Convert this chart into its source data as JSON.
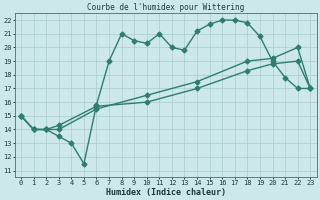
{
  "title": "Courbe de l'humidex pour Wittering",
  "xlabel": "Humidex (Indice chaleur)",
  "bg_color": "#cce8e8",
  "grid_color": "#aacccc",
  "line_color": "#2e7d6e",
  "xlim": [
    -0.5,
    23.5
  ],
  "ylim": [
    10.5,
    22.5
  ],
  "yticks": [
    11,
    12,
    13,
    14,
    15,
    16,
    17,
    18,
    19,
    20,
    21,
    22
  ],
  "xticks": [
    0,
    1,
    2,
    3,
    4,
    5,
    6,
    7,
    8,
    9,
    10,
    11,
    12,
    13,
    14,
    15,
    16,
    17,
    18,
    19,
    20,
    21,
    22,
    23
  ],
  "line1_x": [
    0,
    1,
    2,
    3,
    4,
    5,
    6,
    7,
    8,
    9,
    10,
    11,
    12,
    13,
    14,
    15,
    16,
    17,
    18,
    19,
    20,
    21,
    22,
    23
  ],
  "line1_y": [
    15,
    14,
    14,
    13.5,
    13,
    11.5,
    15.8,
    19,
    21,
    20.5,
    20.3,
    21,
    20,
    19.8,
    21.2,
    21.7,
    22,
    22,
    21.8,
    20.8,
    19,
    17.8,
    17,
    17
  ],
  "line2_x": [
    0,
    1,
    2,
    3,
    6,
    10,
    14,
    18,
    20,
    22,
    23
  ],
  "line2_y": [
    15,
    14,
    14,
    14,
    15.5,
    16.5,
    17.5,
    19.0,
    19.2,
    20.0,
    17
  ],
  "line3_x": [
    0,
    1,
    2,
    3,
    6,
    10,
    14,
    18,
    20,
    22,
    23
  ],
  "line3_y": [
    15,
    14,
    14,
    14.3,
    15.7,
    16.0,
    17.0,
    18.3,
    18.8,
    19.0,
    17
  ],
  "marker": "D",
  "markersize": 2.5,
  "linewidth": 1.0,
  "tick_fontsize": 5,
  "xlabel_fontsize": 6,
  "title_fontsize": 5.5
}
